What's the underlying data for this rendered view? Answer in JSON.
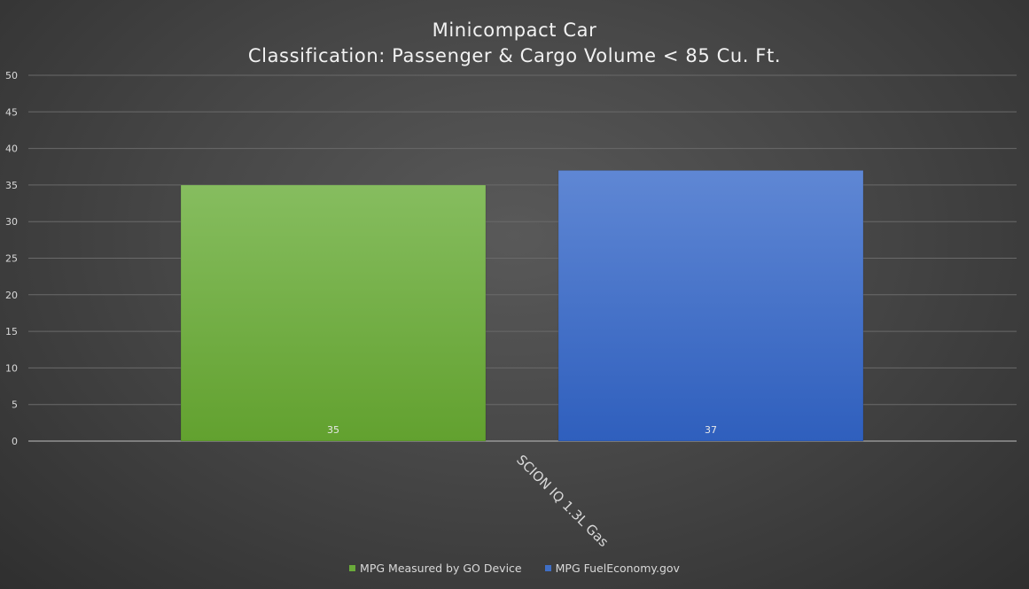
{
  "chart": {
    "title_line1": "Minicompact Car",
    "title_line2": "Classification: Passenger & Cargo Volume < 85 Cu. Ft."
  },
  "chart_data": {
    "type": "bar",
    "title": "Minicompact Car\nClassification: Passenger & Cargo Volume < 85 Cu. Ft.",
    "categories": [
      "SCION IQ 1.3L Gas"
    ],
    "series": [
      {
        "name": "MPG Measured by GO Device",
        "values": [
          35
        ],
        "color": "#6aaa3a"
      },
      {
        "name": "MPG FuelEconomy.gov",
        "values": [
          37
        ],
        "color": "#3f6fc6"
      }
    ],
    "ylim": [
      0,
      50
    ],
    "yticks": [
      0,
      5,
      10,
      15,
      20,
      25,
      30,
      35,
      40,
      45,
      50
    ],
    "xlabel": "",
    "ylabel": "",
    "grid": true,
    "legend_position": "bottom",
    "data_labels": true
  },
  "legend": {
    "items": [
      {
        "label": "MPG Measured by GO Device",
        "color": "#6aaa3a"
      },
      {
        "label": "MPG FuelEconomy.gov",
        "color": "#3f6fc6"
      }
    ]
  }
}
